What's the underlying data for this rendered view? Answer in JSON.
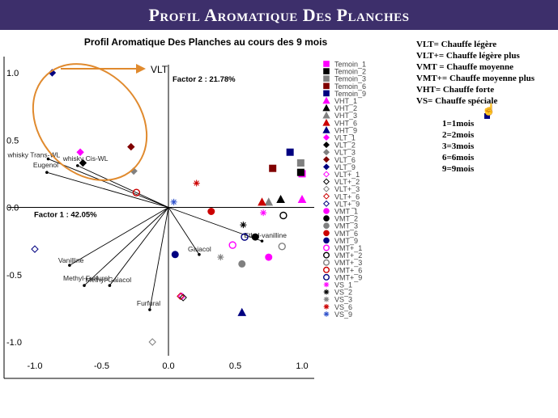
{
  "banner_title": "Profil Aromatique Des Planches",
  "chart_data": {
    "type": "scatter",
    "title": "Profil Aromatique Des Planches  au cours des 9 mois",
    "xlabel": "Factor 1 : 42.05%",
    "ylabel": "Factor 2 : 21.78%",
    "xlim": [
      -1.0,
      1.0
    ],
    "ylim": [
      -1.0,
      1.0
    ],
    "x_ticks": [
      "-1.0",
      "-0.5",
      "0.0",
      "0.5",
      "1.0"
    ],
    "y_ticks": [
      "1.0",
      "0.5",
      "0.0",
      "-0.5",
      "-1.0"
    ],
    "grid": false,
    "legend_position": "right",
    "annotation_label": "VLT",
    "vectors": [
      {
        "name": "whisky Trans-WL",
        "x": -0.9,
        "y": 0.36
      },
      {
        "name": "whisky Cis-WL",
        "x": -0.68,
        "y": 0.31
      },
      {
        "name": "Eugenol",
        "x": -0.91,
        "y": 0.26
      },
      {
        "name": "Vanilline",
        "x": -0.74,
        "y": -0.43
      },
      {
        "name": "Methyl-Furfural",
        "x": -0.63,
        "y": -0.58
      },
      {
        "name": "Methyl-Gaiacol",
        "x": -0.44,
        "y": -0.58
      },
      {
        "name": "Gaiacol",
        "x": 0.23,
        "y": -0.35
      },
      {
        "name": "Ethyl-vanilline",
        "x": 0.7,
        "y": -0.25
      },
      {
        "name": "Furfural",
        "x": -0.14,
        "y": -0.76
      }
    ],
    "series": [
      {
        "name": "Temoin_1",
        "marker": "square",
        "color": "#ff00ff",
        "filled": true,
        "x": 1.0,
        "y": 0.25
      },
      {
        "name": "Temoin_2",
        "marker": "square",
        "color": "#000000",
        "filled": true,
        "x": 0.99,
        "y": 0.26
      },
      {
        "name": "Temoin_3",
        "marker": "square",
        "color": "#808080",
        "filled": true,
        "x": 0.99,
        "y": 0.33
      },
      {
        "name": "Temoin_6",
        "marker": "square",
        "color": "#800000",
        "filled": true,
        "x": 0.78,
        "y": 0.29
      },
      {
        "name": "Temoin_9",
        "marker": "square",
        "color": "#000080",
        "filled": true,
        "x": 0.91,
        "y": 0.41
      },
      {
        "name": "VHT_1",
        "marker": "triangle",
        "color": "#ff00ff",
        "filled": true,
        "x": 1.0,
        "y": 0.06
      },
      {
        "name": "VHT_2",
        "marker": "triangle",
        "color": "#000000",
        "filled": true,
        "x": 0.84,
        "y": 0.06
      },
      {
        "name": "VHT_3",
        "marker": "triangle",
        "color": "#808080",
        "filled": true,
        "x": 0.75,
        "y": 0.04
      },
      {
        "name": "VHT_6",
        "marker": "triangle",
        "color": "#cc0000",
        "filled": true,
        "x": 0.7,
        "y": 0.04
      },
      {
        "name": "VHT_9",
        "marker": "triangle",
        "color": "#000080",
        "filled": true,
        "x": 0.55,
        "y": -0.78
      },
      {
        "name": "VLT_1",
        "marker": "diamond",
        "color": "#ff00ff",
        "filled": true,
        "x": -0.66,
        "y": 0.41
      },
      {
        "name": "VLT_2",
        "marker": "diamond",
        "color": "#000000",
        "filled": true,
        "x": -0.64,
        "y": 0.33
      },
      {
        "name": "VLT_3",
        "marker": "diamond",
        "color": "#808080",
        "filled": true,
        "x": -0.26,
        "y": 0.27
      },
      {
        "name": "VLT_6",
        "marker": "diamond",
        "color": "#800000",
        "filled": true,
        "x": -0.28,
        "y": 0.45
      },
      {
        "name": "VLT_9",
        "marker": "diamond",
        "color": "#000080",
        "filled": true,
        "x": -0.87,
        "y": 1.0
      },
      {
        "name": "VLT+_1",
        "marker": "diamond",
        "color": "#ff00ff",
        "filled": false,
        "x": 0.1,
        "y": -0.66
      },
      {
        "name": "VLT+_2",
        "marker": "diamond",
        "color": "#000000",
        "filled": false,
        "x": 0.11,
        "y": -0.67
      },
      {
        "name": "VLT+_3",
        "marker": "diamond",
        "color": "#808080",
        "filled": false,
        "x": -0.12,
        "y": -1.0
      },
      {
        "name": "VLT+_6",
        "marker": "diamond",
        "color": "#cc0000",
        "filled": false,
        "x": 0.09,
        "y": -0.66
      },
      {
        "name": "VLT+_9",
        "marker": "diamond",
        "color": "#000080",
        "filled": false,
        "x": -1.0,
        "y": -0.31
      },
      {
        "name": "VMT_1",
        "marker": "circle",
        "color": "#ff00ff",
        "filled": true,
        "x": 0.75,
        "y": -0.37
      },
      {
        "name": "VMT_2",
        "marker": "circle",
        "color": "#000000",
        "filled": true,
        "x": 0.65,
        "y": -0.22
      },
      {
        "name": "VMT_3",
        "marker": "circle",
        "color": "#808080",
        "filled": true,
        "x": 0.55,
        "y": -0.42
      },
      {
        "name": "VMT_6",
        "marker": "circle",
        "color": "#cc0000",
        "filled": true,
        "x": 0.32,
        "y": -0.03
      },
      {
        "name": "VMT_9",
        "marker": "circle",
        "color": "#000080",
        "filled": true,
        "x": 0.05,
        "y": -0.35
      },
      {
        "name": "VMT+_1",
        "marker": "circle",
        "color": "#ff00ff",
        "filled": false,
        "x": 0.48,
        "y": -0.28
      },
      {
        "name": "VMT+_2",
        "marker": "circle",
        "color": "#000000",
        "filled": false,
        "x": 0.86,
        "y": -0.06
      },
      {
        "name": "VMT+_3",
        "marker": "circle",
        "color": "#808080",
        "filled": false,
        "x": 0.85,
        "y": -0.29
      },
      {
        "name": "VMT+_6",
        "marker": "circle",
        "color": "#cc0000",
        "filled": false,
        "x": -0.24,
        "y": 0.11
      },
      {
        "name": "VMT+_9",
        "marker": "circle",
        "color": "#000080",
        "filled": false,
        "x": 0.57,
        "y": -0.22
      },
      {
        "name": "VS_1",
        "marker": "star",
        "color": "#ff00ff",
        "filled": true,
        "x": 0.71,
        "y": -0.04
      },
      {
        "name": "VS_2",
        "marker": "star",
        "color": "#000000",
        "filled": true,
        "x": 0.56,
        "y": -0.13
      },
      {
        "name": "VS_3",
        "marker": "star",
        "color": "#808080",
        "filled": true,
        "x": 0.39,
        "y": -0.37
      },
      {
        "name": "VS_6",
        "marker": "star",
        "color": "#cc0000",
        "filled": true,
        "x": 0.21,
        "y": 0.18
      },
      {
        "name": "VS_9",
        "marker": "star",
        "color": "#3355cc",
        "filled": true,
        "x": 0.04,
        "y": 0.04
      }
    ]
  },
  "key_legend": {
    "lines": [
      "VLT= Chauffe légère",
      "VLT+= Chauffe légère plus",
      "VMT = Chauffe moyenne",
      "VMT+= Chauffe moyenne plus",
      "VHT= Chauffe forte",
      "VS= Chauffe spéciale"
    ],
    "months": [
      "1=1mois",
      "2=2mois",
      "3=3mois",
      "6=6mois",
      "9=9mois"
    ]
  },
  "colors": {
    "banner": "#3d2f6b",
    "ellipse": "#e08a2e"
  }
}
